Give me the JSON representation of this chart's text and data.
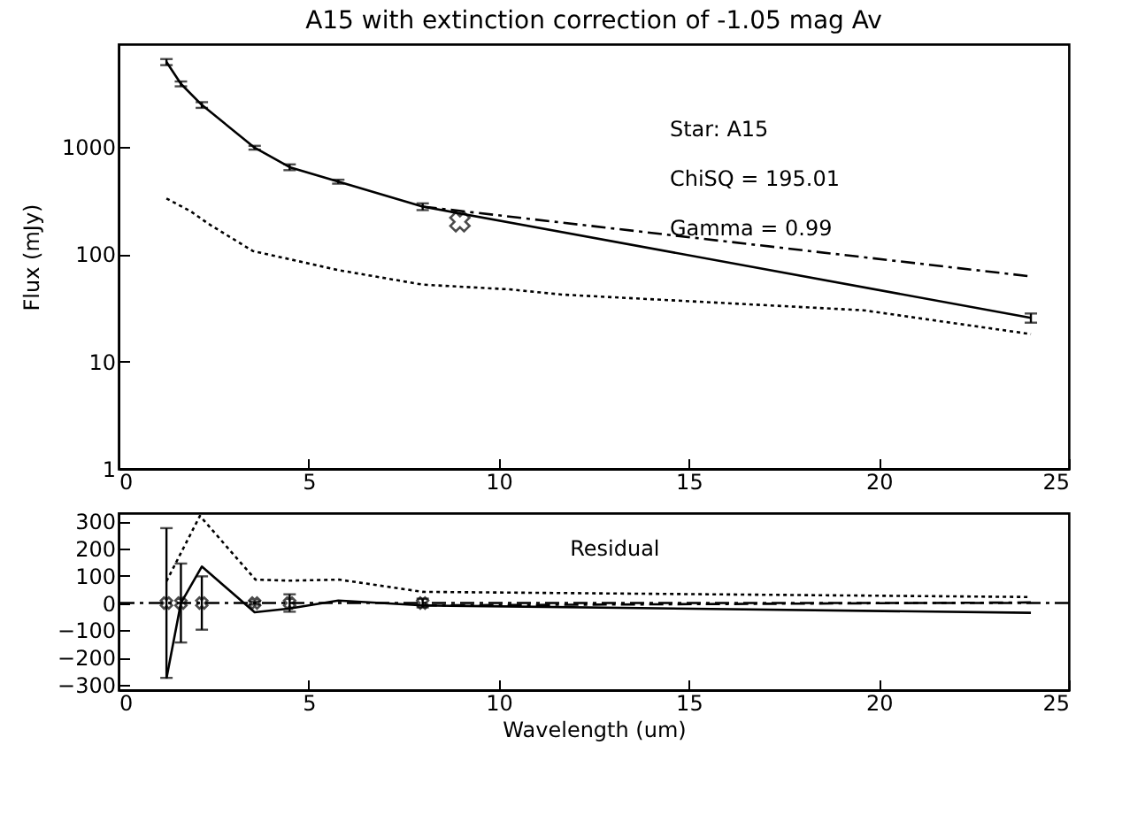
{
  "chart_data": [
    {
      "type": "line",
      "title": "A15 with extinction correction of -1.05 mag Av",
      "ylabel": "Flux (mJy)",
      "log": "y",
      "grid": false,
      "xlim": [
        0,
        25
      ],
      "xticks": [
        0,
        5,
        10,
        15,
        20,
        25
      ],
      "ylim": [
        1,
        9000
      ],
      "yticks": [
        1,
        10,
        100,
        1000
      ],
      "annotations": [
        "Star: A15",
        "ChiSQ = 195.01",
        "Gamma = 0.99"
      ],
      "series": [
        {
          "color": "#000000",
          "line_style": "solid",
          "marker": "none",
          "x": [
            1.26,
            1.64,
            2.19,
            3.58,
            4.5,
            5.78,
            8.0,
            24.0
          ],
          "values": [
            6150,
            3850,
            2450,
            980,
            645,
            473,
            277,
            25.5
          ],
          "errors": [
            400,
            200,
            150,
            40,
            40,
            20,
            20,
            2.5
          ]
        },
        {
          "color": "#000000",
          "line_style": "dashed",
          "marker": "none",
          "x": [
            8.0,
            24.0
          ],
          "values": [
            277,
            62
          ]
        },
        {
          "color": "#000000",
          "line_style": "dotted",
          "marker": "none",
          "x": [
            1.26,
            1.9,
            2.37,
            3.53,
            5.78,
            8.0,
            10.28,
            11.67,
            19.6,
            24.0
          ],
          "values": [
            330,
            250,
            191,
            107,
            71,
            52,
            47,
            42,
            30,
            18
          ]
        },
        {
          "type": "scatter",
          "color": "#000000",
          "marker": "cross",
          "x": [
            8.98
          ],
          "values": [
            200
          ]
        }
      ]
    },
    {
      "type": "line",
      "xlabel": "Wavelength (um)",
      "grid": false,
      "xlim": [
        0,
        25
      ],
      "xticks": [
        0,
        5,
        10,
        15,
        20,
        25
      ],
      "ylim": [
        -320,
        330
      ],
      "yticks": [
        -300,
        -200,
        -100,
        0,
        100,
        200,
        300
      ],
      "annotations": [
        "Residual"
      ],
      "ref_lines": [
        {
          "axis": "y",
          "value": 0,
          "color": "#000000",
          "line_style": "dashed"
        }
      ],
      "series": [
        {
          "color": "#000000",
          "line_style": "solid",
          "marker": "none",
          "x": [
            1.26,
            1.64,
            2.19,
            3.58,
            4.5,
            5.78,
            8.0,
            24.0
          ],
          "values": [
            -277,
            0,
            134,
            -34,
            -20,
            9,
            -9,
            -36
          ]
        },
        {
          "type": "scatter",
          "color": "#000000",
          "marker": "cross",
          "x": [
            1.26,
            1.64,
            2.19,
            3.58,
            4.5,
            8.0
          ],
          "values": [
            0,
            0,
            0,
            0,
            0,
            0
          ],
          "errors": [
            275,
            145,
            98,
            6,
            32,
            16
          ]
        },
        {
          "color": "#000000",
          "line_style": "dotted",
          "marker": "none",
          "x": [
            1.26,
            2.14,
            3.6,
            4.5,
            5.8,
            8.0,
            24.0
          ],
          "values": [
            80,
            320,
            86,
            82,
            86,
            41,
            22
          ]
        },
        {
          "color": "#000000",
          "line_style": "dashed",
          "marker": "none",
          "x": [
            8.0,
            24.0
          ],
          "values": [
            -9,
            2
          ]
        }
      ]
    }
  ]
}
